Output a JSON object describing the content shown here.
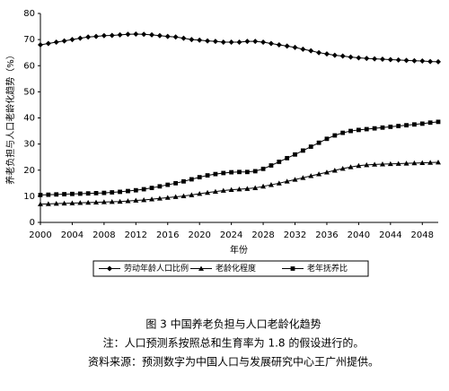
{
  "chart_data": {
    "type": "line",
    "ylabel": "养老负担与人口老龄化趋势（%）",
    "xlabel": "年份",
    "x": [
      2000,
      2001,
      2002,
      2003,
      2004,
      2005,
      2006,
      2007,
      2008,
      2009,
      2010,
      2011,
      2012,
      2013,
      2014,
      2015,
      2016,
      2017,
      2018,
      2019,
      2020,
      2021,
      2022,
      2023,
      2024,
      2025,
      2026,
      2027,
      2028,
      2029,
      2030,
      2031,
      2032,
      2033,
      2034,
      2035,
      2036,
      2037,
      2038,
      2039,
      2040,
      2041,
      2042,
      2043,
      2044,
      2045,
      2046,
      2047,
      2048,
      2049,
      2050
    ],
    "xlim": [
      2000,
      2050
    ],
    "xticks": [
      2000,
      2004,
      2008,
      2012,
      2016,
      2020,
      2024,
      2028,
      2032,
      2036,
      2040,
      2044,
      2048
    ],
    "ylim": [
      0,
      80
    ],
    "yticks": [
      0,
      10,
      20,
      30,
      40,
      50,
      60,
      70,
      80
    ],
    "series": [
      {
        "name": "劳动年龄人口比例",
        "color": "#000000",
        "marker": "diamond",
        "values": [
          68,
          68.5,
          69,
          69.5,
          70,
          70.5,
          71,
          71.2,
          71.5,
          71.6,
          71.8,
          72,
          72.1,
          72,
          71.8,
          71.5,
          71.2,
          71,
          70.5,
          70,
          69.8,
          69.5,
          69.3,
          69,
          69,
          69,
          69.3,
          69.3,
          69,
          68.5,
          68,
          67.5,
          67,
          66.3,
          65.7,
          65,
          64.5,
          64,
          63.7,
          63.3,
          63,
          62.8,
          62.6,
          62.5,
          62.3,
          62.2,
          62,
          61.9,
          61.8,
          61.6,
          61.5
        ]
      },
      {
        "name": "老龄化程度",
        "color": "#000000",
        "marker": "triangle",
        "values": [
          7,
          7.1,
          7.2,
          7.3,
          7.4,
          7.5,
          7.6,
          7.7,
          7.8,
          7.9,
          8,
          8.2,
          8.4,
          8.6,
          8.9,
          9.2,
          9.5,
          9.8,
          10.1,
          10.5,
          11,
          11.4,
          11.8,
          12.2,
          12.5,
          12.7,
          12.9,
          13.2,
          13.8,
          14.4,
          15,
          15.7,
          16.4,
          17.1,
          17.8,
          18.5,
          19.2,
          19.9,
          20.6,
          21.2,
          21.7,
          22,
          22.2,
          22.3,
          22.4,
          22.5,
          22.6,
          22.7,
          22.8,
          22.9,
          23
        ]
      },
      {
        "name": "老年抚养比",
        "color": "#000000",
        "marker": "square",
        "values": [
          10.5,
          10.6,
          10.7,
          10.8,
          10.9,
          11,
          11.1,
          11.2,
          11.3,
          11.5,
          11.7,
          12,
          12.3,
          12.7,
          13.2,
          13.8,
          14.4,
          15,
          15.7,
          16.5,
          17.3,
          18,
          18.5,
          18.9,
          19.2,
          19.3,
          19.3,
          19.6,
          20.5,
          21.8,
          23.2,
          24.6,
          26,
          27.5,
          29,
          30.5,
          32,
          33.3,
          34.3,
          35,
          35.4,
          35.7,
          36,
          36.3,
          36.6,
          36.9,
          37.2,
          37.5,
          37.8,
          38.2,
          38.5
        ]
      }
    ],
    "caption": [
      "图 3  中国养老负担与人口老龄化趋势",
      "注：人口预测系按照总和生育率为 1.8 的假设进行的。",
      "资料来源：预测数字为中国人口与发展研究中心王广州提供。"
    ]
  }
}
